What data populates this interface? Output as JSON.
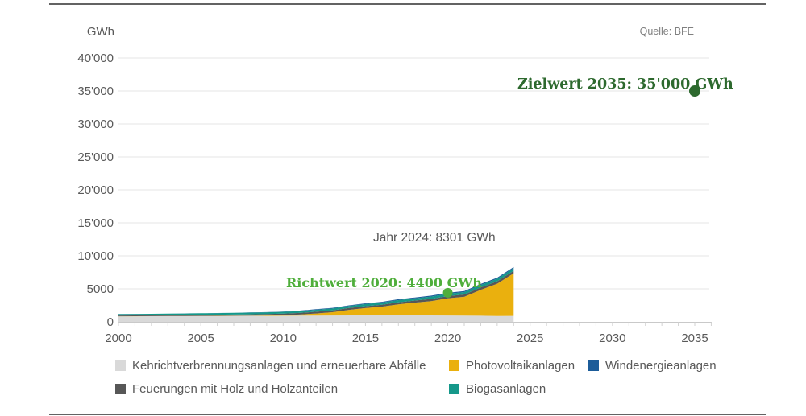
{
  "page": {
    "unit_label": "GWh",
    "source": "Quelle: BFE"
  },
  "chart_data": {
    "type": "area",
    "stacked": true,
    "title": "",
    "xlabel": "",
    "ylabel": "GWh",
    "ylim": [
      0,
      40000
    ],
    "xlim": [
      2000,
      2036
    ],
    "grid": true,
    "legend_position": "bottom",
    "axis_end_year": 2036,
    "x": [
      2000,
      2001,
      2002,
      2003,
      2004,
      2005,
      2006,
      2007,
      2008,
      2009,
      2010,
      2011,
      2012,
      2013,
      2014,
      2015,
      2016,
      2017,
      2018,
      2019,
      2020,
      2021,
      2022,
      2023,
      2024
    ],
    "series": [
      {
        "name": "Kehrichtverbrennungsanlagen und erneuerbare Abfälle",
        "color": "#d9d9d9",
        "values": [
          830,
          840,
          850,
          860,
          870,
          880,
          890,
          900,
          910,
          920,
          930,
          940,
          950,
          960,
          970,
          970,
          970,
          970,
          970,
          970,
          960,
          950,
          930,
          880,
          900
        ]
      },
      {
        "name": "Photovoltaikanlagen",
        "color": "#eab00e",
        "values": [
          11,
          13,
          15,
          17,
          19,
          21,
          24,
          29,
          37,
          54,
          94,
          168,
          323,
          500,
          842,
          1119,
          1333,
          1683,
          1945,
          2178,
          2599,
          2842,
          3925,
          4900,
          6450
        ]
      },
      {
        "name": "Feuerungen mit Holz und Holzanteilen",
        "color": "#575757",
        "values": [
          120,
          125,
          130,
          140,
          150,
          160,
          170,
          185,
          200,
          215,
          230,
          245,
          260,
          270,
          280,
          290,
          300,
          310,
          320,
          330,
          340,
          350,
          360,
          370,
          380
        ]
      },
      {
        "name": "Biogasanlagen",
        "color": "#15988a",
        "values": [
          215,
          220,
          225,
          230,
          235,
          240,
          245,
          252,
          260,
          268,
          276,
          284,
          292,
          300,
          308,
          316,
          324,
          332,
          340,
          350,
          360,
          368,
          378,
          390,
          400
        ]
      },
      {
        "name": "Windenergieanlagen",
        "color": "#1c5c99",
        "values": [
          3,
          5,
          5,
          5,
          6,
          8,
          15,
          16,
          19,
          23,
          37,
          70,
          88,
          90,
          101,
          110,
          109,
          133,
          122,
          146,
          146,
          147,
          153,
          160,
          171
        ]
      }
    ],
    "xticks": [
      2000,
      2005,
      2010,
      2015,
      2020,
      2025,
      2030,
      2035
    ],
    "yticks": [
      {
        "value": 0,
        "label": "0"
      },
      {
        "value": 5000,
        "label": "5000"
      },
      {
        "value": 10000,
        "label": "10'000"
      },
      {
        "value": 15000,
        "label": "15'000"
      },
      {
        "value": 20000,
        "label": "20'000"
      },
      {
        "value": 25000,
        "label": "25'000"
      },
      {
        "value": 30000,
        "label": "30'000"
      },
      {
        "value": 35000,
        "label": "35'000"
      },
      {
        "value": 40000,
        "label": "40'000"
      }
    ],
    "annotations": [
      {
        "text": "Zielwert 2035: 35'000 GWh",
        "x": 2035,
        "y": 35000,
        "color": "#2d692e",
        "dot": true,
        "r": 7
      },
      {
        "text": "Richtwert 2020: 4400 GWh",
        "x": 2020,
        "y": 4400,
        "color": "#4fae3b",
        "dot": true,
        "r": 6
      },
      {
        "text": "Jahr 2024: 8301 GWh",
        "x": 2024,
        "y": 8301,
        "color": "#595959",
        "dot": false
      }
    ]
  },
  "legend": {
    "items": [
      {
        "label": "Kehrichtverbrennungsanlagen und erneuerbare Abfälle",
        "color": "#d9d9d9"
      },
      {
        "label": "Photovoltaikanlagen",
        "color": "#eab00e"
      },
      {
        "label": "Windenergieanlagen",
        "color": "#1c5c99"
      },
      {
        "label": "Feuerungen mit Holz und Holzanteilen",
        "color": "#575757"
      },
      {
        "label": "Biogasanlagen",
        "color": "#15988a"
      }
    ]
  }
}
